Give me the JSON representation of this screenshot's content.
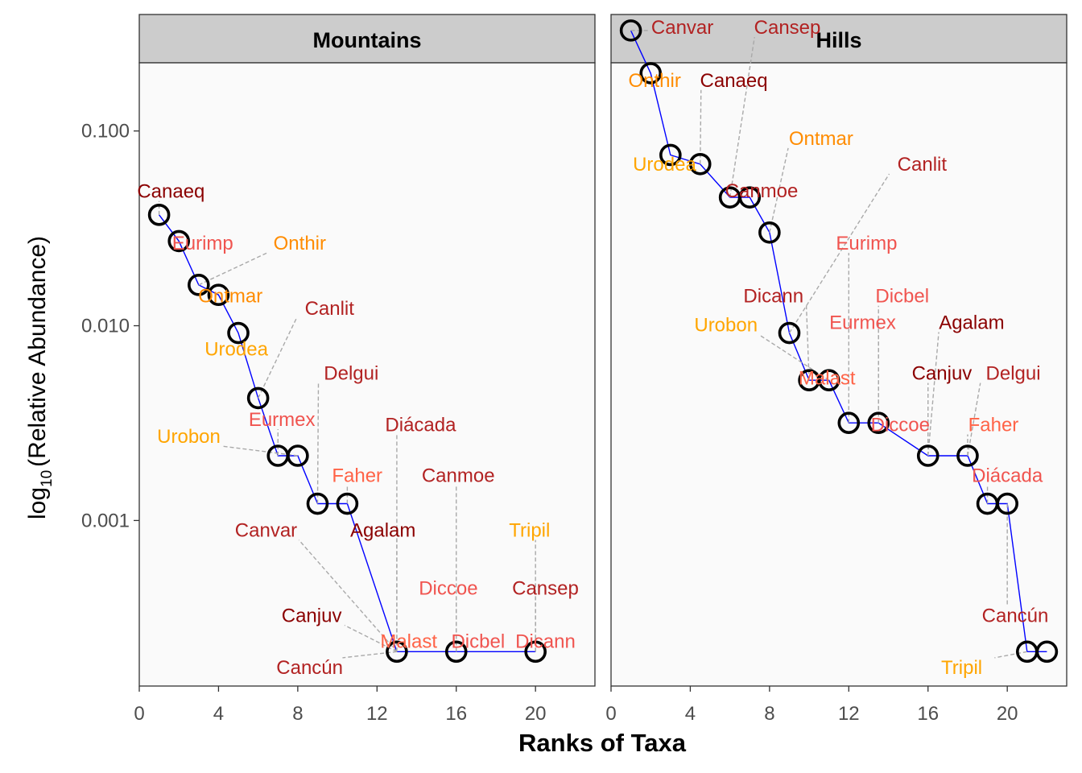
{
  "chart_data": {
    "type": "scatter",
    "xlabel": "Ranks of Taxa",
    "ylabel_prefix": "log",
    "ylabel_subscript": "10",
    "ylabel_suffix": "(Relative Abundance)",
    "x_ticks": [
      0,
      4,
      8,
      12,
      16,
      20
    ],
    "xlim": [
      0,
      23
    ],
    "y_ticks": [
      {
        "value": 0.1,
        "label": "0.100"
      },
      {
        "value": 0.01,
        "label": "0.010"
      },
      {
        "value": 0.001,
        "label": "0.001"
      }
    ],
    "ylim_log10": [
      -3.85,
      -0.65
    ],
    "colors": {
      "dark_red": "#8B0000",
      "red": "#B22222",
      "salmon": "#F0544F",
      "orange": "#FF8C00",
      "gold": "#FFA500",
      "line": "#0000FF",
      "point": "#000000",
      "leader": "#A9A9A9",
      "strip_bg": "#CCCCCC",
      "panel_bg": "#FAFAFA"
    },
    "panels": [
      {
        "title": "Mountains",
        "points": [
          {
            "x": 1,
            "y": 0.0371,
            "label": "Canaeq",
            "color": "#8B0000",
            "lx": 1.6,
            "ly": 0.049
          },
          {
            "x": 2,
            "y": 0.0272,
            "label": "Eurimp",
            "color": "#F0544F",
            "lx": 3.2,
            "ly": 0.0265
          },
          {
            "x": 3,
            "y": 0.0162,
            "label": "Onthir",
            "color": "#FF8C00",
            "lx": 8.1,
            "ly": 0.0265
          },
          {
            "x": 4,
            "y": 0.0144,
            "label": "Ontmar",
            "color": "#FF8C00",
            "lx": 4.6,
            "ly": 0.0142
          },
          {
            "x": 5,
            "y": 0.00918,
            "label": "Urodea",
            "color": "#FFA500",
            "lx": 4.9,
            "ly": 0.0076
          },
          {
            "x": 6,
            "y": 0.00425,
            "label": "Canlit",
            "color": "#B22222",
            "lx": 9.6,
            "ly": 0.0123
          },
          {
            "x": 7,
            "y": 0.00215,
            "label": "Eurmex",
            "color": "#F0544F",
            "lx": 7.2,
            "ly": 0.0033
          },
          {
            "x": 8,
            "y": 0.00215,
            "label": "Urobon",
            "color": "#FFA500",
            "lx": 2.5,
            "ly": 0.0027
          },
          {
            "x": 9,
            "y": 0.00122,
            "label": "Delgui",
            "color": "#B22222",
            "lx": 10.7,
            "ly": 0.0057
          },
          {
            "x": 10.5,
            "y": 0.00122,
            "label": "Faher",
            "color": "#FF6347",
            "lx": 11,
            "ly": 0.0017
          },
          {
            "x": 13,
            "y": 0.000212,
            "label": "Canvar",
            "color": "#B22222",
            "lx": 6.4,
            "ly": 0.00089
          },
          {
            "x": 13,
            "y": 0.000212,
            "label": "Agalam",
            "color": "#8B0000",
            "lx": 12.3,
            "ly": 0.00089
          },
          {
            "x": 13,
            "y": 0.000212,
            "label": "Diácada",
            "color": "#B22222",
            "lx": 14.2,
            "ly": 0.0031
          },
          {
            "x": 13,
            "y": 0.000212,
            "label": "Canjuv",
            "color": "#8B0000",
            "lx": 8.7,
            "ly": 0.000325
          },
          {
            "x": 13,
            "y": 0.000212,
            "label": "Malast",
            "color": "#FF6347",
            "lx": 13.6,
            "ly": 0.00024
          },
          {
            "x": 13,
            "y": 0.000212,
            "label": "Cancún",
            "color": "#B22222",
            "lx": 8.6,
            "ly": 0.000176
          },
          {
            "x": 16,
            "y": 0.000212,
            "label": "Canmoe",
            "color": "#B22222",
            "lx": 16.1,
            "ly": 0.0017
          },
          {
            "x": 16,
            "y": 0.000212,
            "label": "Diccoe",
            "color": "#F0544F",
            "lx": 15.6,
            "ly": 0.00045
          },
          {
            "x": 16,
            "y": 0.000212,
            "label": "Dicbel",
            "color": "#F0544F",
            "lx": 17.1,
            "ly": 0.00024
          },
          {
            "x": 20,
            "y": 0.000212,
            "label": "Tripil",
            "color": "#FFA500",
            "lx": 19.7,
            "ly": 0.00089
          },
          {
            "x": 20,
            "y": 0.000212,
            "label": "Cansep",
            "color": "#B22222",
            "lx": 20.5,
            "ly": 0.00045
          },
          {
            "x": 20,
            "y": 0.000212,
            "label": "Dicann",
            "color": "#F0544F",
            "lx": 20.5,
            "ly": 0.00024
          }
        ]
      },
      {
        "title": "Hills",
        "points": [
          {
            "x": 1,
            "y": 0.328,
            "label": "Canvar",
            "color": "#B22222",
            "lx": 3.6,
            "ly": 0.34
          },
          {
            "x": 2,
            "y": 0.198,
            "label": "Onthir",
            "color": "#FF8C00",
            "lx": 2.2,
            "ly": 0.182
          },
          {
            "x": 3,
            "y": 0.0753,
            "label": "Urodea",
            "color": "#FFA500",
            "lx": 2.7,
            "ly": 0.0675
          },
          {
            "x": 4.5,
            "y": 0.0676,
            "label": "Canaeq",
            "color": "#8B0000",
            "lx": 6.2,
            "ly": 0.182
          },
          {
            "x": 6,
            "y": 0.0456,
            "label": "Cansep",
            "color": "#B22222",
            "lx": 8.9,
            "ly": 0.34
          },
          {
            "x": 7,
            "y": 0.0456,
            "label": "Canmoe",
            "color": "#B22222",
            "lx": 7.6,
            "ly": 0.0493
          },
          {
            "x": 8,
            "y": 0.0301,
            "label": "Ontmar",
            "color": "#FF8C00",
            "lx": 10.6,
            "ly": 0.0916
          },
          {
            "x": 9,
            "y": 0.00918,
            "label": "Canlit",
            "color": "#B22222",
            "lx": 15.7,
            "ly": 0.0675
          },
          {
            "x": 10,
            "y": 0.00525,
            "label": "Dicann",
            "color": "#B22222",
            "lx": 8.2,
            "ly": 0.0142
          },
          {
            "x": 11,
            "y": 0.00525,
            "label": "Urobon",
            "color": "#FFA500",
            "lx": 5.8,
            "ly": 0.0101
          },
          {
            "x": 11,
            "y": 0.00525,
            "label": "Malast",
            "color": "#FF6347",
            "lx": 10.9,
            "ly": 0.0054
          },
          {
            "x": 12,
            "y": 0.00317,
            "label": "Eurimp",
            "color": "#F0544F",
            "lx": 12.9,
            "ly": 0.0265
          },
          {
            "x": 13.5,
            "y": 0.00317,
            "label": "Eurmex",
            "color": "#F0544F",
            "lx": 12.7,
            "ly": 0.0104
          },
          {
            "x": 13.5,
            "y": 0.00317,
            "label": "Dicbel",
            "color": "#F0544F",
            "lx": 14.7,
            "ly": 0.0142
          },
          {
            "x": 13.5,
            "y": 0.00317,
            "label": "Diccoe",
            "color": "#F0544F",
            "lx": 14.6,
            "ly": 0.0031
          },
          {
            "x": 16,
            "y": 0.00215,
            "label": "Agalam",
            "color": "#8B0000",
            "lx": 18.2,
            "ly": 0.0104
          },
          {
            "x": 16,
            "y": 0.00215,
            "label": "Canjuv",
            "color": "#8B0000",
            "lx": 16.7,
            "ly": 0.0057
          },
          {
            "x": 18,
            "y": 0.00215,
            "label": "Delgui",
            "color": "#B22222",
            "lx": 20.3,
            "ly": 0.0057
          },
          {
            "x": 18,
            "y": 0.00215,
            "label": "Faher",
            "color": "#FF6347",
            "lx": 19.3,
            "ly": 0.0031
          },
          {
            "x": 19,
            "y": 0.00122,
            "label": "Diácada",
            "color": "#F0544F",
            "lx": 20,
            "ly": 0.0017
          },
          {
            "x": 20,
            "y": 0.00122,
            "label": "Cancún",
            "color": "#B22222",
            "lx": 20.4,
            "ly": 0.000325
          },
          {
            "x": 21,
            "y": 0.000212,
            "label": "Tripil",
            "color": "#FFA500",
            "lx": 17.7,
            "ly": 0.000176
          },
          {
            "x": 22,
            "y": 0.000212,
            "label": "",
            "color": "#B22222",
            "lx": 22,
            "ly": 0.000212
          }
        ]
      }
    ]
  }
}
